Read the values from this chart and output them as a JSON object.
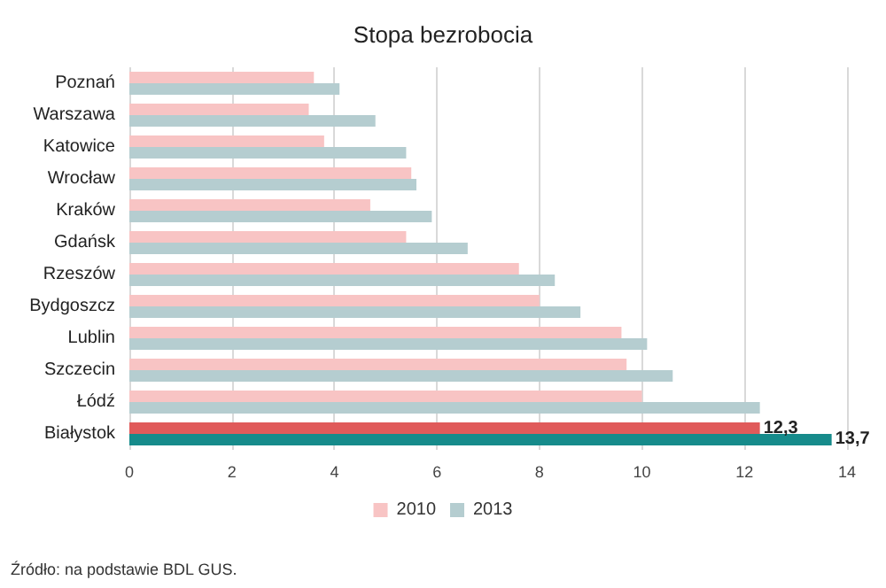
{
  "chart_data": {
    "type": "bar",
    "orientation": "horizontal",
    "title": "Stopa bezrobocia",
    "categories": [
      "Poznań",
      "Warszawa",
      "Katowice",
      "Wrocław",
      "Kraków",
      "Gdańsk",
      "Rzeszów",
      "Bydgoszcz",
      "Lublin",
      "Szczecin",
      "Łódź",
      "Białystok"
    ],
    "series": [
      {
        "name": "2010",
        "color": "#f8c4c4",
        "colors": [
          "#f8c4c4",
          "#f8c4c4",
          "#f8c4c4",
          "#f8c4c4",
          "#f8c4c4",
          "#f8c4c4",
          "#f8c4c4",
          "#f8c4c4",
          "#f8c4c4",
          "#f8c4c4",
          "#f8c4c4",
          "#e05a5a"
        ],
        "values": [
          3.6,
          3.5,
          3.8,
          5.5,
          4.7,
          5.4,
          7.6,
          8.0,
          9.6,
          9.7,
          10.0,
          12.3
        ],
        "value_labels": [
          null,
          null,
          null,
          null,
          null,
          null,
          null,
          null,
          null,
          null,
          null,
          "12,3"
        ]
      },
      {
        "name": "2013",
        "color": "#b5cdd0",
        "colors": [
          "#b5cdd0",
          "#b5cdd0",
          "#b5cdd0",
          "#b5cdd0",
          "#b5cdd0",
          "#b5cdd0",
          "#b5cdd0",
          "#b5cdd0",
          "#b5cdd0",
          "#b5cdd0",
          "#b5cdd0",
          "#168b8b"
        ],
        "values": [
          4.1,
          4.8,
          5.4,
          5.6,
          5.9,
          6.6,
          8.3,
          8.8,
          10.1,
          10.6,
          12.3,
          13.7
        ],
        "value_labels": [
          null,
          null,
          null,
          null,
          null,
          null,
          null,
          null,
          null,
          null,
          null,
          "13,7"
        ]
      }
    ],
    "xlim": [
      0,
      14
    ],
    "xticks": [
      0,
      2,
      4,
      6,
      8,
      10,
      12,
      14
    ],
    "grid": "x",
    "legend": "bottom",
    "annotations": [
      "Źródło: na podstawie BDL GUS."
    ]
  }
}
